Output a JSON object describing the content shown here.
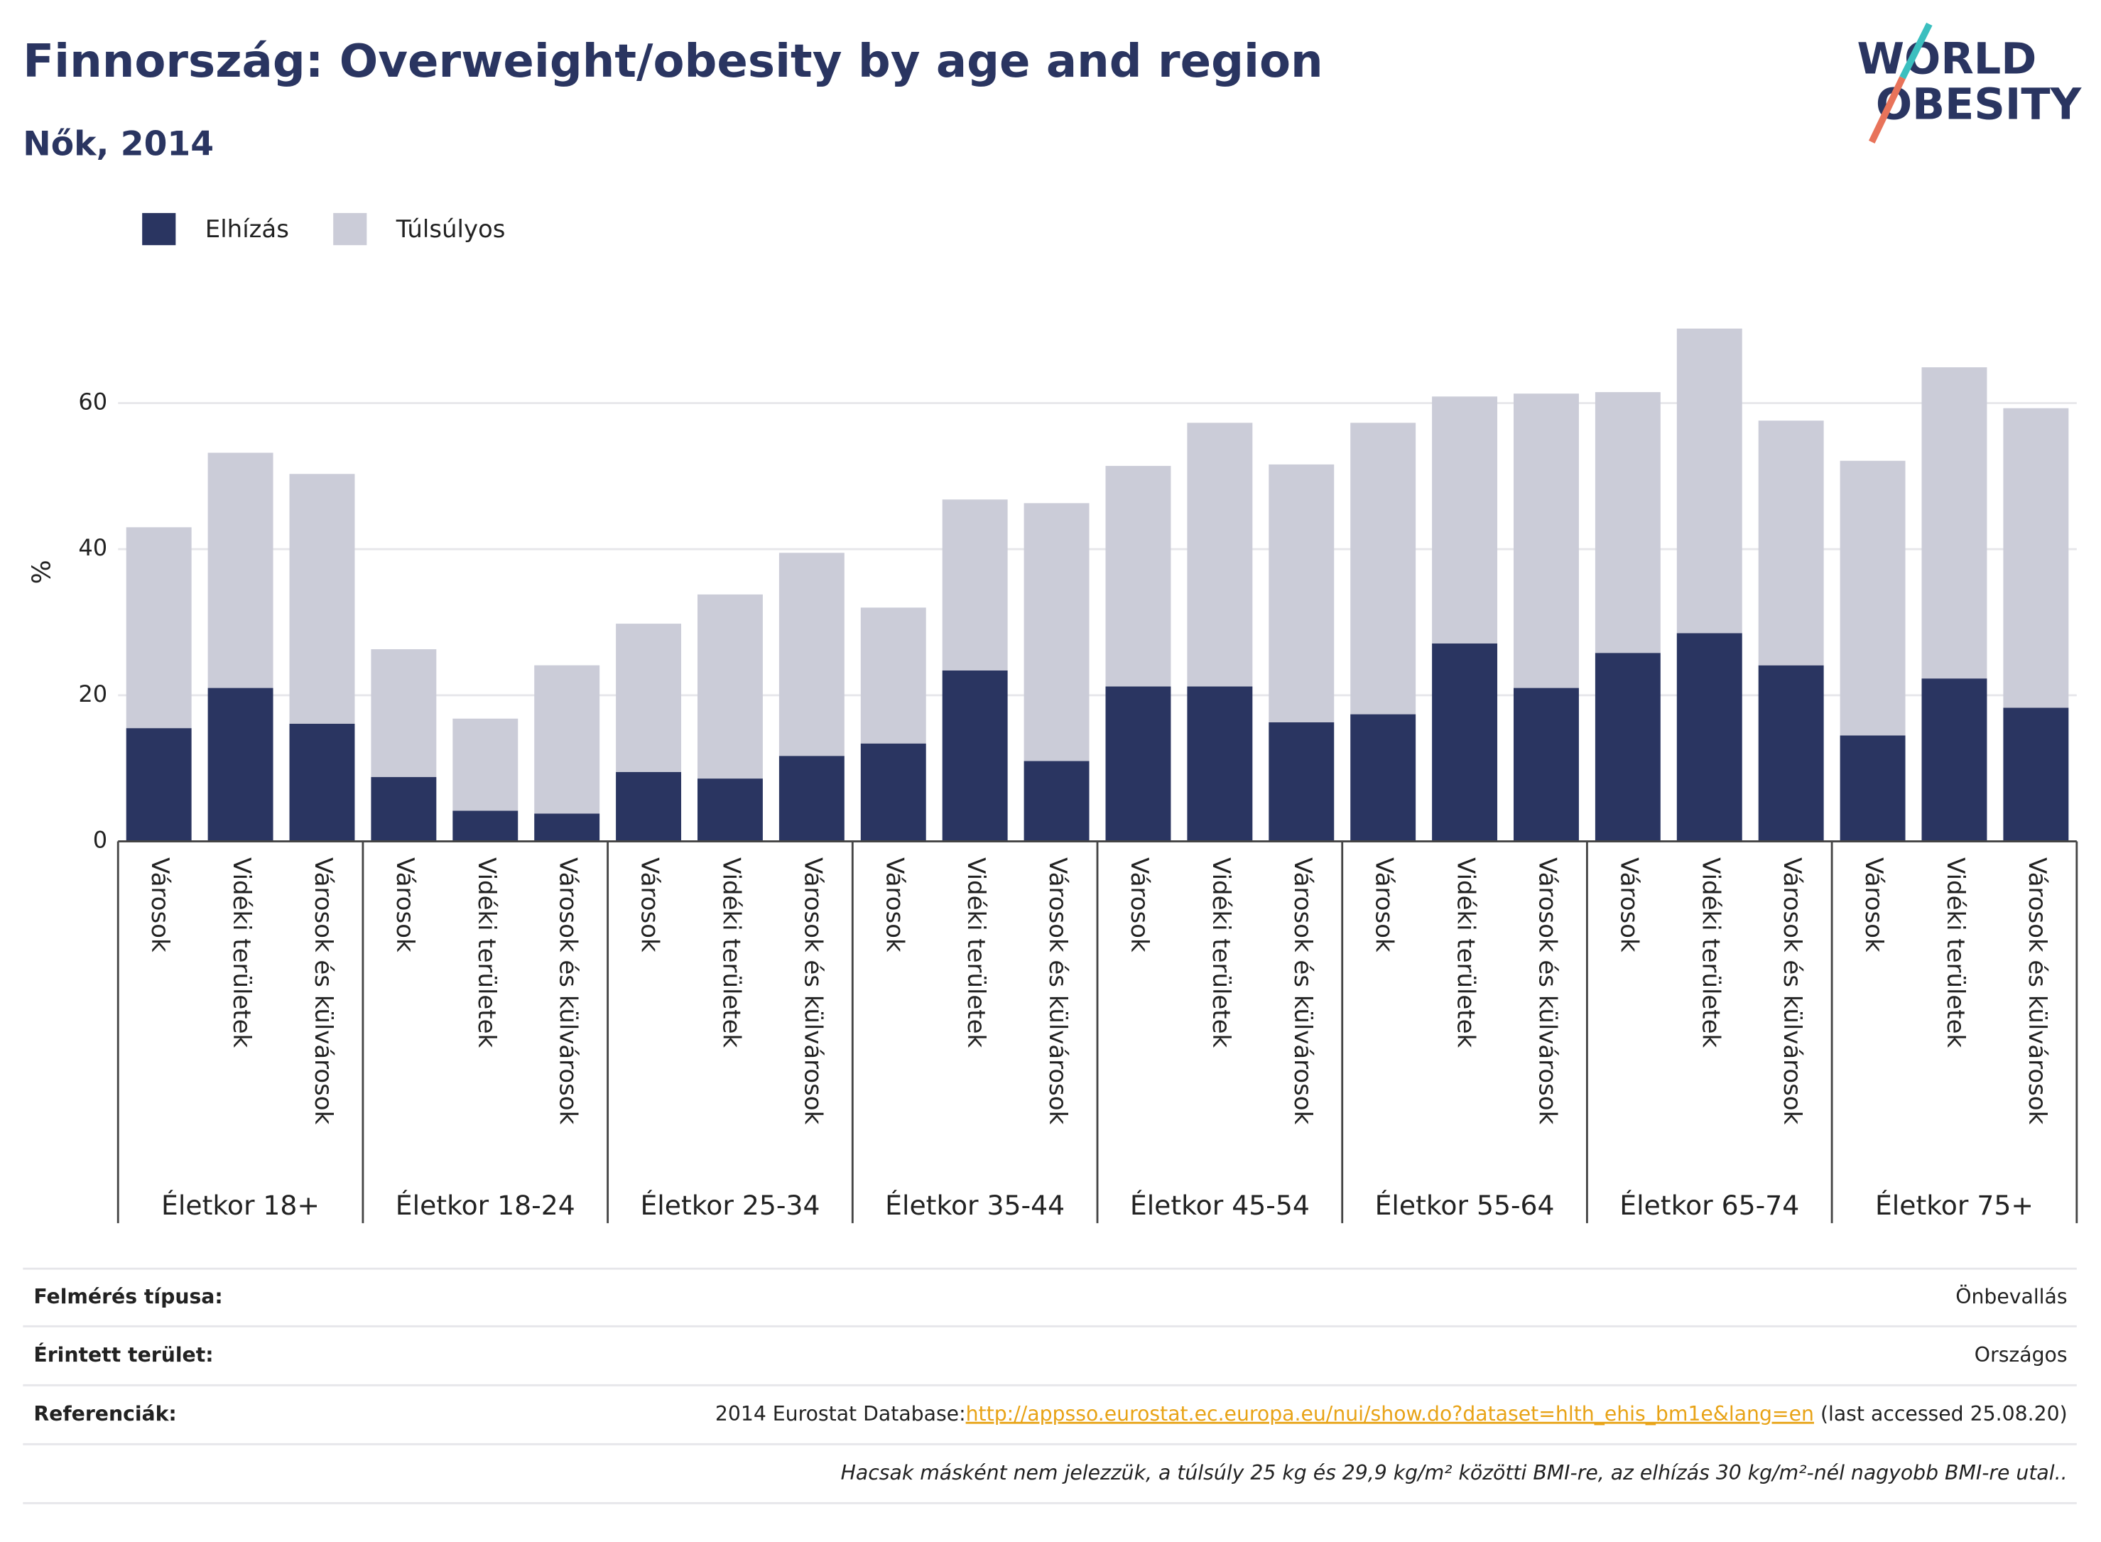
{
  "chart_data": {
    "type": "stacked-bar",
    "title": "Finnország: Overweight/obesity by age and region",
    "subtitle": "Nők, 2014",
    "y_label": "%",
    "groups": [
      "Életkor 18+",
      "Életkor 18-24",
      "Életkor 25-34",
      "Életkor 35-44",
      "Életkor 45-54",
      "Életkor 55-64",
      "Életkor 65-74",
      "Életkor 75+"
    ],
    "subcategories": [
      "Városok",
      "Vidéki területek",
      "Városok és külvárosok"
    ],
    "series": [
      {
        "name": "Elhízás",
        "color": "#2a3561",
        "values": [
          15.5,
          21.0,
          16.1,
          8.8,
          4.2,
          3.8,
          9.5,
          8.6,
          11.7,
          13.4,
          23.4,
          11.0,
          21.2,
          21.2,
          16.3,
          17.4,
          27.1,
          21.0,
          25.8,
          28.5,
          24.1,
          14.5,
          22.3,
          18.3
        ]
      },
      {
        "name": "Túlsúlyos",
        "color": "#cbccd8",
        "values": [
          27.5,
          32.2,
          34.2,
          17.5,
          12.6,
          20.3,
          20.3,
          25.2,
          27.8,
          18.6,
          23.4,
          35.3,
          30.2,
          36.1,
          35.3,
          39.9,
          33.8,
          40.3,
          35.7,
          41.7,
          33.5,
          37.6,
          42.6,
          41.0
        ]
      }
    ],
    "ylim": [
      0,
      73
    ],
    "yticks": [
      0,
      20,
      40,
      60
    ],
    "grid": true,
    "legend": "top-left"
  },
  "logo": {
    "line1": "WORLD",
    "line2": "OBESITY"
  },
  "footer": {
    "rows": [
      {
        "label": "Felmérés típusa:",
        "value": "Önbevallás"
      },
      {
        "label": "Érintett terület:",
        "value": "Országos"
      }
    ],
    "reference": {
      "label": "Referenciák:",
      "prefix": "2014 Eurostat Database:",
      "link": "http://appsso.eurostat.ec.europa.eu/nui/show.do?dataset=hlth_ehis_bm1e&lang=en",
      "suffix": " (last accessed 25.08.20)"
    },
    "note": "Hacsak másként nem jelezzük, a túlsúly 25 kg és 29,9 kg/m² közötti BMI-re, az elhízás 30 kg/m²-nél nagyobb BMI-re utal.."
  }
}
